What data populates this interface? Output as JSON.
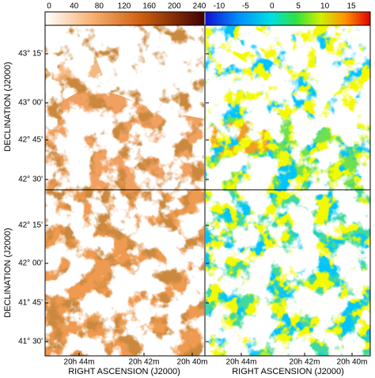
{
  "colorbars": [
    {
      "ticks": [
        "0",
        "40",
        "80",
        "120",
        "160",
        "200",
        "240"
      ]
    },
    {
      "ticks": [
        "-10",
        "-5",
        "0",
        "5",
        "10",
        "15"
      ]
    }
  ],
  "y_label": "DECLINATION (J2000)",
  "x_label": "RIGHT ASCENSION (J2000)",
  "top_yticks": [
    "43° 15'",
    "43° 00'",
    "42° 45'",
    "42° 30'"
  ],
  "bottom_yticks": [
    "42° 15'",
    "42° 00'",
    "41° 45'",
    "41° 30'"
  ],
  "xticks": [
    "20h 44m",
    "20h 42m",
    "20h 40m"
  ]
}
